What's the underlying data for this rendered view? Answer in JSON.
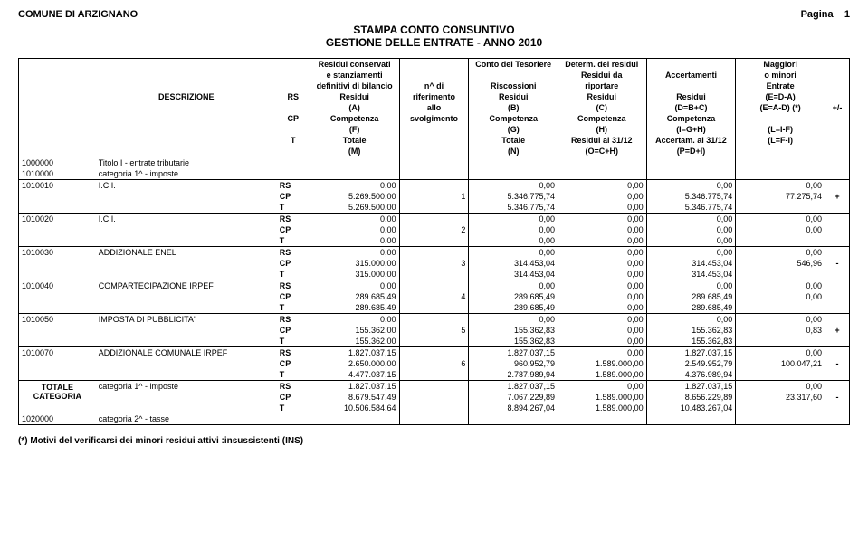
{
  "header": {
    "comune": "COMUNE DI ARZIGNANO",
    "pagina_label": "Pagina",
    "pagina_num": "1",
    "title1": "STAMPA CONTO CONSUNTIVO",
    "title2": "GESTIONE DELLE ENTRATE - ANNO 2010"
  },
  "col_headers": {
    "descrizione": "DESCRIZIONE",
    "rs": "RS",
    "cp": "CP",
    "t": "T",
    "c1a": "Residui conservati",
    "c1b": "e stanziamenti",
    "c1c": "definitivi di bilancio",
    "c1d": "Residui",
    "c1e": "(A)",
    "c1f": "Competenza",
    "c1g": "(F)",
    "c1h": "Totale",
    "c1i": "(M)",
    "c2a": "n^ di",
    "c2b": "riferimento",
    "c2c": "allo",
    "c2d": "svolgimento",
    "c3a": "Conto del Tesoriere",
    "c3b": "Riscossioni",
    "c3c": "Residui",
    "c3d": "(B)",
    "c3e": "Competenza",
    "c3f": "(G)",
    "c3g": "Totale",
    "c3h": "(N)",
    "c4a": "Determ. dei residui",
    "c4b": "Residui da",
    "c4c": "riportare",
    "c4d": "Residui",
    "c4e": "(C)",
    "c4f": "Competenza",
    "c4g": "(H)",
    "c4h": "Residui al 31/12",
    "c4i": "(O=C+H)",
    "c5a": "Accertamenti",
    "c5b": "Residui",
    "c5c": "(D=B+C)",
    "c5d": "Competenza",
    "c5e": "(I=G+H)",
    "c5f": "Accertam. al 31/12",
    "c5g": "(P=D+I)",
    "c6a": "Maggiori",
    "c6b": "o minori",
    "c6c": "Entrate",
    "c6d": "(E=D-A)",
    "c6e": "(E=A-D) (*)",
    "c6f": "(L=I-F)",
    "c6g": "(L=F-I)",
    "sign": "+/-"
  },
  "rows": [
    {
      "code": "1000000",
      "desc": "Titolo I - entrate tributarie",
      "type": "header"
    },
    {
      "code": "1010000",
      "desc": "categoria 1^ - imposte",
      "type": "header"
    },
    {
      "code": "1010010",
      "desc": "I.C.I.",
      "type": "data",
      "n": "1",
      "rs": [
        "0,00",
        "",
        "0,00",
        "0,00",
        "0,00",
        "0,00",
        ""
      ],
      "cp": [
        "5.269.500,00",
        "",
        "5.346.775,74",
        "0,00",
        "5.346.775,74",
        "77.275,74",
        "+"
      ],
      "t": [
        "5.269.500,00",
        "",
        "5.346.775,74",
        "0,00",
        "5.346.775,74",
        "",
        ""
      ]
    },
    {
      "code": "1010020",
      "desc": "I.C.I.",
      "type": "data",
      "n": "2",
      "rs": [
        "0,00",
        "",
        "0,00",
        "0,00",
        "0,00",
        "0,00",
        ""
      ],
      "cp": [
        "0,00",
        "",
        "0,00",
        "0,00",
        "0,00",
        "0,00",
        ""
      ],
      "t": [
        "0,00",
        "",
        "0,00",
        "0,00",
        "0,00",
        "",
        ""
      ]
    },
    {
      "code": "1010030",
      "desc": "ADDIZIONALE ENEL",
      "type": "data",
      "n": "3",
      "rs": [
        "0,00",
        "",
        "0,00",
        "0,00",
        "0,00",
        "0,00",
        ""
      ],
      "cp": [
        "315.000,00",
        "",
        "314.453,04",
        "0,00",
        "314.453,04",
        "546,96",
        "-"
      ],
      "t": [
        "315.000,00",
        "",
        "314.453,04",
        "0,00",
        "314.453,04",
        "",
        ""
      ]
    },
    {
      "code": "1010040",
      "desc": "COMPARTECIPAZIONE IRPEF",
      "type": "data",
      "n": "4",
      "rs": [
        "0,00",
        "",
        "0,00",
        "0,00",
        "0,00",
        "0,00",
        ""
      ],
      "cp": [
        "289.685,49",
        "",
        "289.685,49",
        "0,00",
        "289.685,49",
        "0,00",
        ""
      ],
      "t": [
        "289.685,49",
        "",
        "289.685,49",
        "0,00",
        "289.685,49",
        "",
        ""
      ]
    },
    {
      "code": "1010050",
      "desc": "IMPOSTA DI PUBBLICITA'",
      "type": "data",
      "n": "5",
      "rs": [
        "0,00",
        "",
        "0,00",
        "0,00",
        "0,00",
        "0,00",
        ""
      ],
      "cp": [
        "155.362,00",
        "",
        "155.362,83",
        "0,00",
        "155.362,83",
        "0,83",
        "+"
      ],
      "t": [
        "155.362,00",
        "",
        "155.362,83",
        "0,00",
        "155.362,83",
        "",
        ""
      ]
    },
    {
      "code": "1010070",
      "desc": "ADDIZIONALE COMUNALE IRPEF",
      "type": "data",
      "n": "6",
      "rs": [
        "1.827.037,15",
        "",
        "1.827.037,15",
        "0,00",
        "1.827.037,15",
        "0,00",
        ""
      ],
      "cp": [
        "2.650.000,00",
        "",
        "960.952,79",
        "1.589.000,00",
        "2.549.952,79",
        "100.047,21",
        "-"
      ],
      "t": [
        "4.477.037,15",
        "",
        "2.787.989,94",
        "1.589.000,00",
        "4.376.989,94",
        "",
        ""
      ]
    },
    {
      "code": "TOTALE CATEGORIA",
      "desc": "categoria 1^ - imposte",
      "type": "total",
      "rs": [
        "1.827.037,15",
        "",
        "1.827.037,15",
        "0,00",
        "1.827.037,15",
        "0,00",
        ""
      ],
      "cp": [
        "8.679.547,49",
        "",
        "7.067.229,89",
        "1.589.000,00",
        "8.656.229,89",
        "23.317,60",
        "-"
      ],
      "t": [
        "10.506.584,64",
        "",
        "8.894.267,04",
        "1.589.000,00",
        "10.483.267,04",
        "",
        ""
      ]
    },
    {
      "code": "1020000",
      "desc": "categoria 2^ - tasse",
      "type": "header"
    }
  ],
  "footer_note": "(*) Motivi del verificarsi dei minori residui attivi :insussistenti (INS)"
}
